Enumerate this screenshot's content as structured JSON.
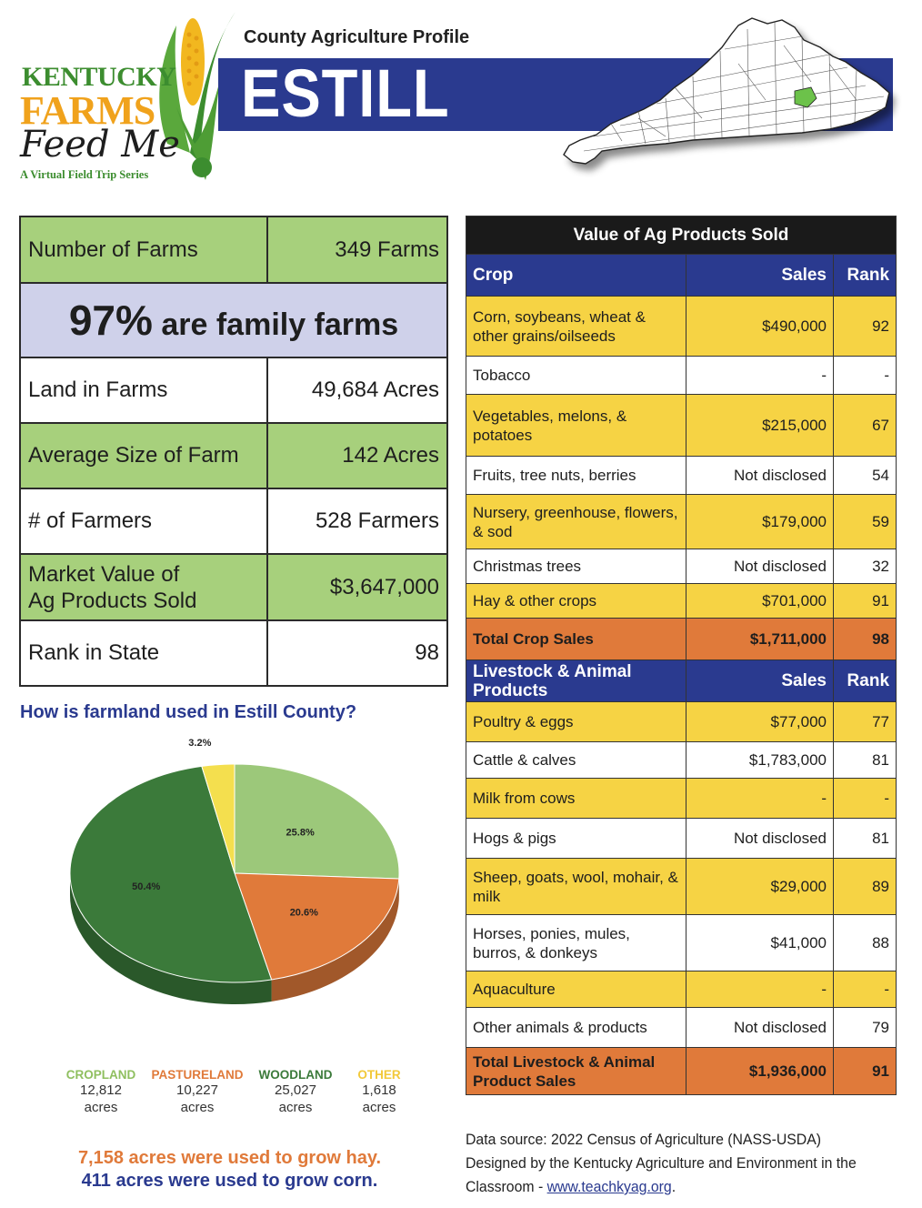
{
  "header": {
    "logo": {
      "line1": "KENTUCKY",
      "line2": "FARMS",
      "line3": "Feed Me",
      "tagline": "A Virtual Field Trip Series"
    },
    "profile_label": "County Agriculture Profile",
    "county": "ESTILL"
  },
  "stats": {
    "farms_label": "Number of Farms",
    "farms_value": "349 Farms",
    "family_pct": "97%",
    "family_text": "are family farms",
    "land_label": "Land in Farms",
    "land_value": "49,684 Acres",
    "avg_label": "Average Size of Farm",
    "avg_value": "142 Acres",
    "farmers_label": "# of Farmers",
    "farmers_value": "528 Farmers",
    "market_label_1": "Market Value of",
    "market_label_2": "Ag Products Sold",
    "market_value": "$3,647,000",
    "rank_label": "Rank in State",
    "rank_value": "98"
  },
  "farmland": {
    "question": "How is farmland used in Estill County?",
    "hay_note": "7,158 acres were used to grow hay.",
    "corn_note": "411 acres were used to grow corn."
  },
  "chart_data": {
    "type": "pie",
    "title": "How is farmland used in Estill County?",
    "slices": [
      {
        "name": "CROPLAND",
        "percent": 25.8,
        "label": "25.8%",
        "acres": "12,812",
        "unit": "acres",
        "color": "#9cc87a"
      },
      {
        "name": "PASTURELAND",
        "percent": 20.6,
        "label": "20.6%",
        "acres": "10,227",
        "unit": "acres",
        "color": "#e07a3a"
      },
      {
        "name": "WOODLAND",
        "percent": 50.4,
        "label": "50.4%",
        "acres": "25,027",
        "unit": "acres",
        "color": "#3b7a3a"
      },
      {
        "name": "OTHER",
        "percent": 3.2,
        "label": "3.2%",
        "acres": "1,618",
        "unit": "acres",
        "color": "#f4df4e"
      }
    ]
  },
  "ag_table": {
    "title": "Value of Ag Products Sold",
    "crop_header": {
      "col1": "Crop",
      "col2": "Sales",
      "col3": "Rank"
    },
    "crops": [
      {
        "name": "Corn, soybeans, wheat & other grains/oilseeds",
        "sales": "$490,000",
        "rank": "92"
      },
      {
        "name": "Tobacco",
        "sales": "-",
        "rank": "-"
      },
      {
        "name": "Vegetables, melons, & potatoes",
        "sales": "$215,000",
        "rank": "67"
      },
      {
        "name": "Fruits, tree nuts, berries",
        "sales": "Not disclosed",
        "rank": "54"
      },
      {
        "name": "Nursery, greenhouse, flowers, & sod",
        "sales": "$179,000",
        "rank": "59"
      },
      {
        "name": "Christmas trees",
        "sales": "Not disclosed",
        "rank": "32"
      },
      {
        "name": "Hay & other crops",
        "sales": "$701,000",
        "rank": "91"
      }
    ],
    "crop_total": {
      "name": "Total Crop Sales",
      "sales": "$1,711,000",
      "rank": "98"
    },
    "livestock_header": {
      "col1": "Livestock & Animal Products",
      "col2": "Sales",
      "col3": "Rank"
    },
    "livestock": [
      {
        "name": "Poultry & eggs",
        "sales": "$77,000",
        "rank": "77"
      },
      {
        "name": "Cattle & calves",
        "sales": "$1,783,000",
        "rank": "81"
      },
      {
        "name": "Milk from cows",
        "sales": "-",
        "rank": "-"
      },
      {
        "name": "Hogs & pigs",
        "sales": "Not disclosed",
        "rank": "81"
      },
      {
        "name": "Sheep, goats, wool, mohair, & milk",
        "sales": "$29,000",
        "rank": "89"
      },
      {
        "name": "Horses, ponies, mules, burros, & donkeys",
        "sales": "$41,000",
        "rank": "88"
      },
      {
        "name": "Aquaculture",
        "sales": "-",
        "rank": "-"
      },
      {
        "name": "Other animals & products",
        "sales": "Not disclosed",
        "rank": "79"
      }
    ],
    "livestock_total": {
      "name": "Total Livestock & Animal Product Sales",
      "sales": "$1,936,000",
      "rank": "91"
    }
  },
  "source": {
    "line1": "Data source: 2022 Census of Agriculture (NASS-USDA)",
    "line2": "Designed by the Kentucky Agriculture and Environment in the",
    "line3_prefix": "Classroom - ",
    "link": "www.teachkyag.org",
    "line3_suffix": "."
  }
}
